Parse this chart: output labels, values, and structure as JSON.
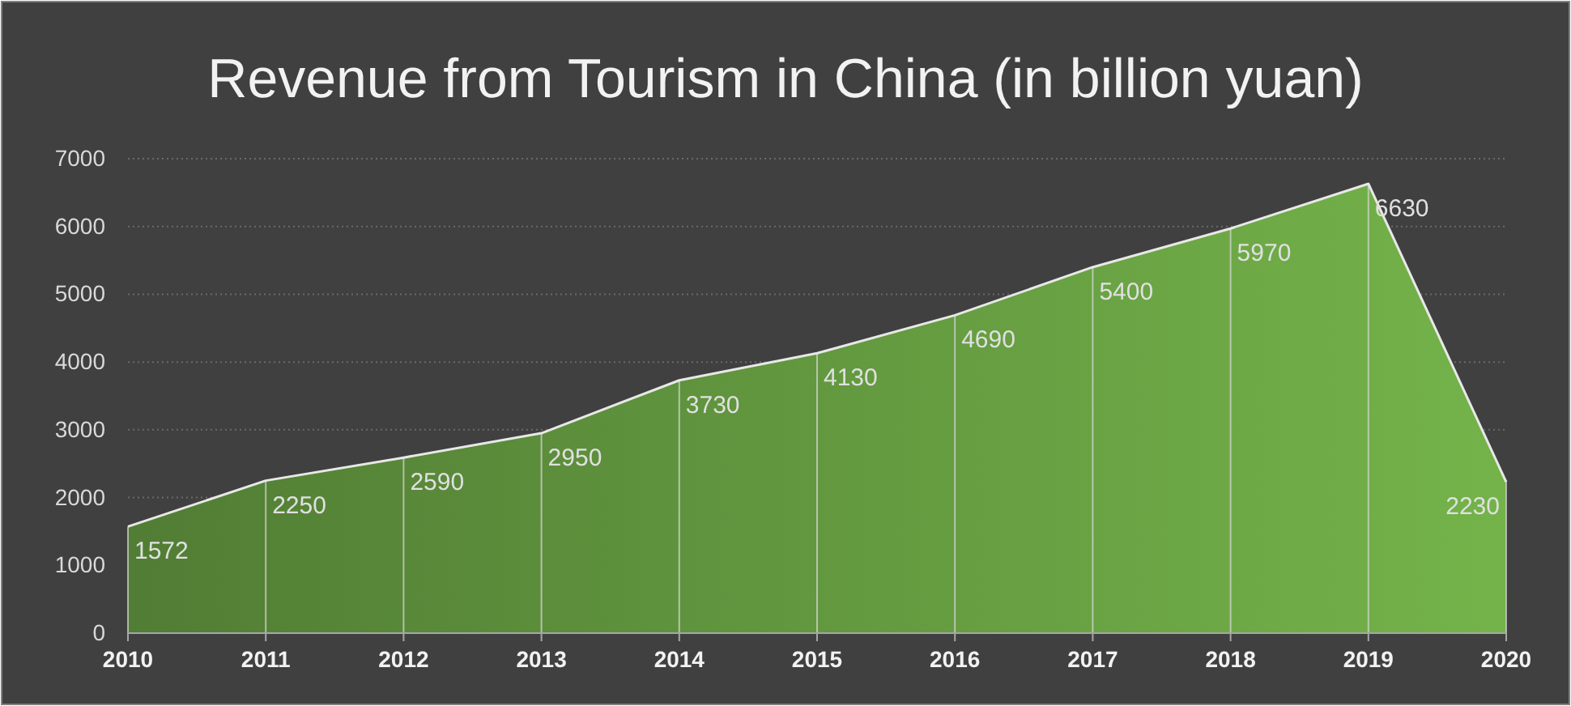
{
  "chart_data": {
    "type": "area",
    "title": "Revenue from Tourism in China (in billion yuan)",
    "categories": [
      "2010",
      "2011",
      "2012",
      "2013",
      "2014",
      "2015",
      "2016",
      "2017",
      "2018",
      "2019",
      "2020"
    ],
    "series": [
      {
        "color": "#70ad47",
        "values": [
          1572,
          2250,
          2590,
          2950,
          3730,
          4130,
          4690,
          5400,
          5970,
          6630,
          2230
        ]
      }
    ],
    "ylim": [
      0,
      7000
    ],
    "yticks": [
      0,
      1000,
      2000,
      3000,
      4000,
      5000,
      6000,
      7000
    ],
    "grid": true,
    "data_labels": true
  }
}
